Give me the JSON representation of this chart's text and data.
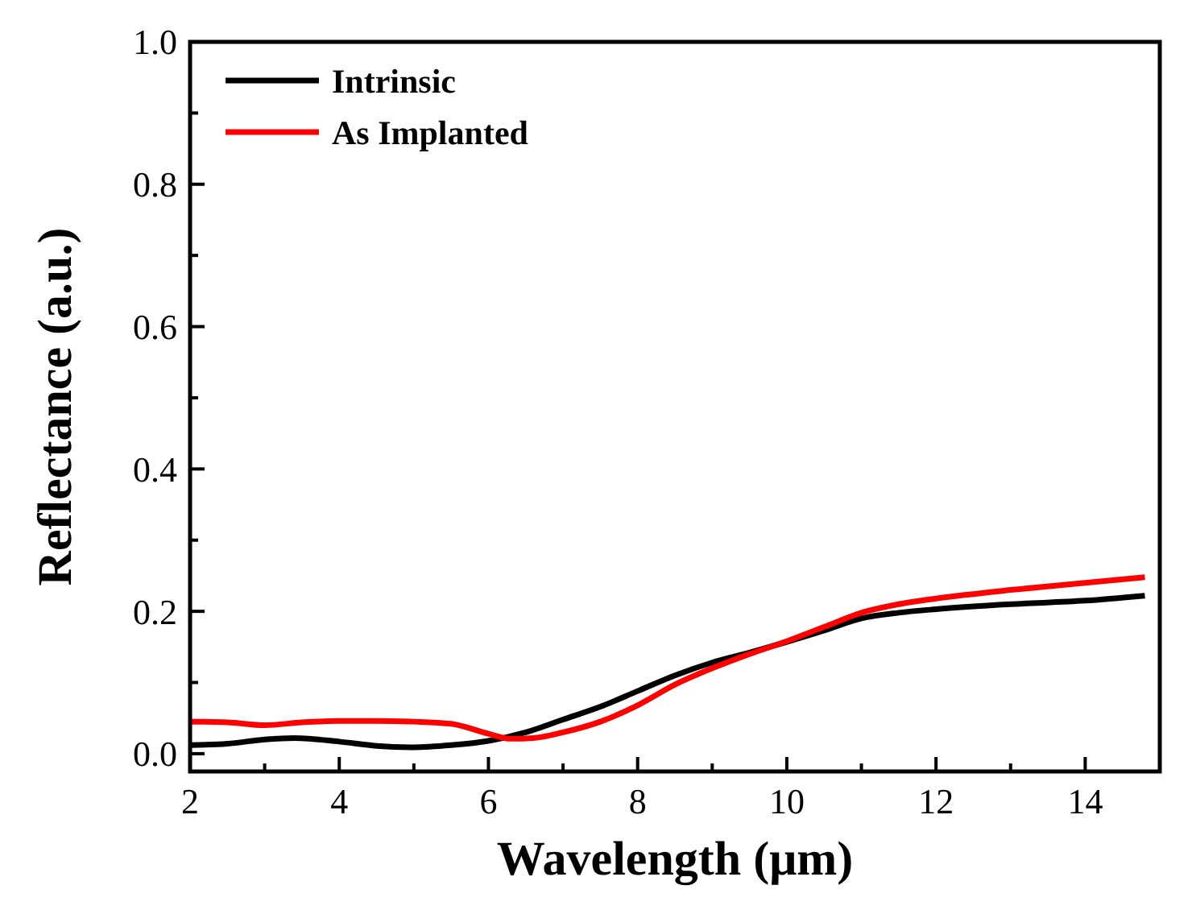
{
  "chart_data": {
    "type": "line",
    "xlabel": "Wavelength (μm)",
    "ylabel": "Reflectance (a.u.)",
    "xlim": [
      2,
      15
    ],
    "ylim": [
      -0.025,
      1.0
    ],
    "xticks": [
      2,
      4,
      6,
      8,
      10,
      12,
      14
    ],
    "yticks": [
      {
        "value": 0,
        "label": "0.0"
      },
      0.2,
      0.4,
      0.6,
      0.8,
      {
        "value": 1,
        "label": "1.0"
      }
    ],
    "legend": "top left",
    "grid": false,
    "line_style": "solid",
    "marker": "none",
    "series": [
      {
        "name": "Intrinsic",
        "color": "#000000",
        "x": [
          2,
          2.5,
          3,
          3.4,
          4,
          4.5,
          5,
          5.5,
          6,
          6.5,
          7,
          7.5,
          8,
          8.5,
          9,
          9.5,
          10,
          10.5,
          11,
          11.5,
          12,
          13,
          14,
          14.8
        ],
        "values": [
          0.012,
          0.014,
          0.02,
          0.022,
          0.017,
          0.011,
          0.009,
          0.012,
          0.018,
          0.03,
          0.048,
          0.066,
          0.088,
          0.11,
          0.128,
          0.142,
          0.157,
          0.173,
          0.19,
          0.198,
          0.203,
          0.21,
          0.215,
          0.222
        ]
      },
      {
        "name": "As Implanted",
        "color": "#ff0000",
        "x": [
          2,
          2.5,
          3,
          3.5,
          4,
          4.5,
          5,
          5.5,
          6,
          6.3,
          6.6,
          7,
          7.5,
          8,
          8.5,
          9,
          9.5,
          10,
          10.5,
          11,
          11.5,
          12,
          13,
          14,
          14.8
        ],
        "values": [
          0.045,
          0.044,
          0.04,
          0.044,
          0.046,
          0.046,
          0.045,
          0.042,
          0.028,
          0.021,
          0.022,
          0.03,
          0.045,
          0.068,
          0.097,
          0.12,
          0.14,
          0.158,
          0.178,
          0.198,
          0.21,
          0.218,
          0.23,
          0.24,
          0.248
        ]
      }
    ]
  }
}
